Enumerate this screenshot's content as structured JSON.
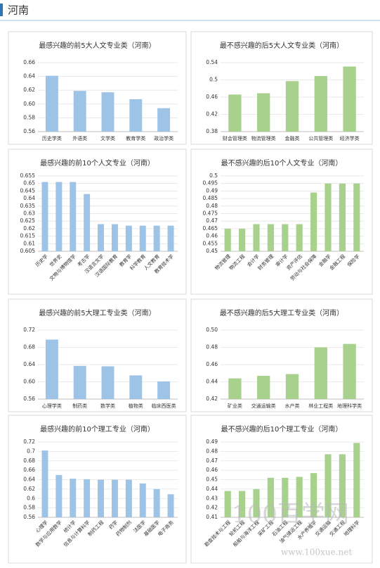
{
  "header": {
    "title": "河南"
  },
  "chart_data": [
    {
      "type": "bar",
      "title": "最感兴趣的前5大人文专业类（河南）",
      "color": "#9dc3e6",
      "categories": [
        "历史学类",
        "外语类",
        "文学类",
        "教育学类",
        "政治学类"
      ],
      "values": [
        0.641,
        0.619,
        0.617,
        0.607,
        0.594
      ],
      "ylim": [
        0.56,
        0.66
      ],
      "yticks": [
        0.56,
        0.58,
        {
          "value": 0.6,
          "label": "0.60"
        },
        0.62,
        0.64,
        0.66
      ]
    },
    {
      "type": "bar",
      "title": "最不感兴趣的后5大人文专业类（河南）",
      "color": "#a9d18e",
      "categories": [
        "财会管理类",
        "物流管理类",
        "金融类",
        "公共管理类",
        "经济学类"
      ],
      "values": [
        0.466,
        0.469,
        0.497,
        0.509,
        0.531
      ],
      "ylim": [
        0.38,
        0.54
      ],
      "yticks": [
        0.38,
        0.42,
        0.46,
        0.5,
        0.54
      ]
    },
    {
      "type": "bar",
      "title": "最感兴趣的前10个人文专业（河南）",
      "color": "#9dc3e6",
      "categories": [
        "历史学",
        "世界史",
        "文物与博物馆学",
        "考古学",
        "汉语言文学",
        "汉语国际教育",
        "教育学",
        "科学教育",
        "人文教育",
        "教育技术学"
      ],
      "values": [
        0.651,
        0.651,
        0.651,
        0.643,
        0.623,
        0.623,
        0.622,
        0.622,
        0.622,
        0.622
      ],
      "ylim": [
        0.605,
        0.655
      ],
      "yticks": [
        0.605,
        0.61,
        0.615,
        0.62,
        0.625,
        0.63,
        0.635,
        0.64,
        0.645,
        0.65,
        0.655
      ]
    },
    {
      "type": "bar",
      "title": "最不感兴趣的后10个人文专业（河南）",
      "color": "#a9d18e",
      "categories": [
        "物流管理",
        "物流工程",
        "会计学",
        "财务管理",
        "审计学",
        "资产评估",
        "劳动与社会保障",
        "金融学",
        "金融工程",
        "保险学"
      ],
      "values": [
        0.465,
        0.465,
        0.468,
        0.468,
        0.468,
        0.468,
        0.489,
        0.495,
        0.495,
        0.495
      ],
      "ylim": [
        0.45,
        0.5
      ],
      "yticks": [
        0.45,
        0.455,
        0.46,
        0.465,
        0.47,
        0.475,
        0.48,
        0.485,
        0.49,
        0.495,
        0.5
      ]
    },
    {
      "type": "bar",
      "title": "最感兴趣的前5大理工专业类（河南）",
      "color": "#9dc3e6",
      "categories": [
        "心理学类",
        "制药类",
        "数学类",
        "植物类",
        "临床西医类"
      ],
      "values": [
        0.698,
        0.637,
        0.636,
        0.615,
        0.601
      ],
      "ylim": [
        0.56,
        0.72
      ],
      "yticks": [
        0.56,
        {
          "value": 0.6,
          "label": "0.60"
        },
        0.64,
        0.68,
        0.72
      ]
    },
    {
      "type": "bar",
      "title": "最不感兴趣的后5大理工专业类（河南）",
      "color": "#a9d18e",
      "categories": [
        "矿业类",
        "交通运输类",
        "水产类",
        "林业工程类",
        "地理科学类"
      ],
      "values": [
        0.444,
        0.447,
        0.449,
        0.48,
        0.484
      ],
      "ylim": [
        0.42,
        0.5
      ],
      "yticks": [
        0.42,
        0.44,
        0.46,
        0.48,
        {
          "value": 0.5,
          "label": "0.50"
        }
      ]
    },
    {
      "type": "bar",
      "title": "最感兴趣的前10个理工专业（河南）",
      "color": "#9dc3e6",
      "categories": [
        "心理学",
        "数学与应用数学",
        "统计学",
        "信息与计算科学",
        "制药工程",
        "药学",
        "药物制剂",
        "法医学",
        "基础医学",
        "电子商务"
      ],
      "values": [
        0.702,
        0.65,
        0.642,
        0.641,
        0.64,
        0.64,
        0.64,
        0.632,
        0.62,
        0.609
      ],
      "ylim": [
        0.56,
        0.72
      ],
      "yticks": [
        0.56,
        0.58,
        0.6,
        0.62,
        0.64,
        0.66,
        0.68,
        0.7,
        0.72
      ]
    },
    {
      "type": "bar",
      "title": "最不感兴趣的后10个理工专业（河南）",
      "color": "#a9d18e",
      "categories": [
        "勘查技术与工程",
        "轮机工程",
        "船舶与海洋工程",
        "采矿工程",
        "石油工程",
        "油气储运工程",
        "水产养殖学",
        "交通运输",
        "交通工程",
        "地理科学"
      ],
      "values": [
        0.438,
        0.438,
        0.44,
        0.452,
        0.452,
        0.453,
        0.457,
        0.477,
        0.477,
        0.489
      ],
      "ylim": [
        0.41,
        0.49
      ],
      "yticks": [
        0.41,
        0.42,
        0.43,
        0.44,
        0.45,
        0.46,
        0.47,
        0.48,
        0.49
      ]
    }
  ],
  "watermark": {
    "logo": "100百学网",
    "url": "www.100xue.net"
  }
}
